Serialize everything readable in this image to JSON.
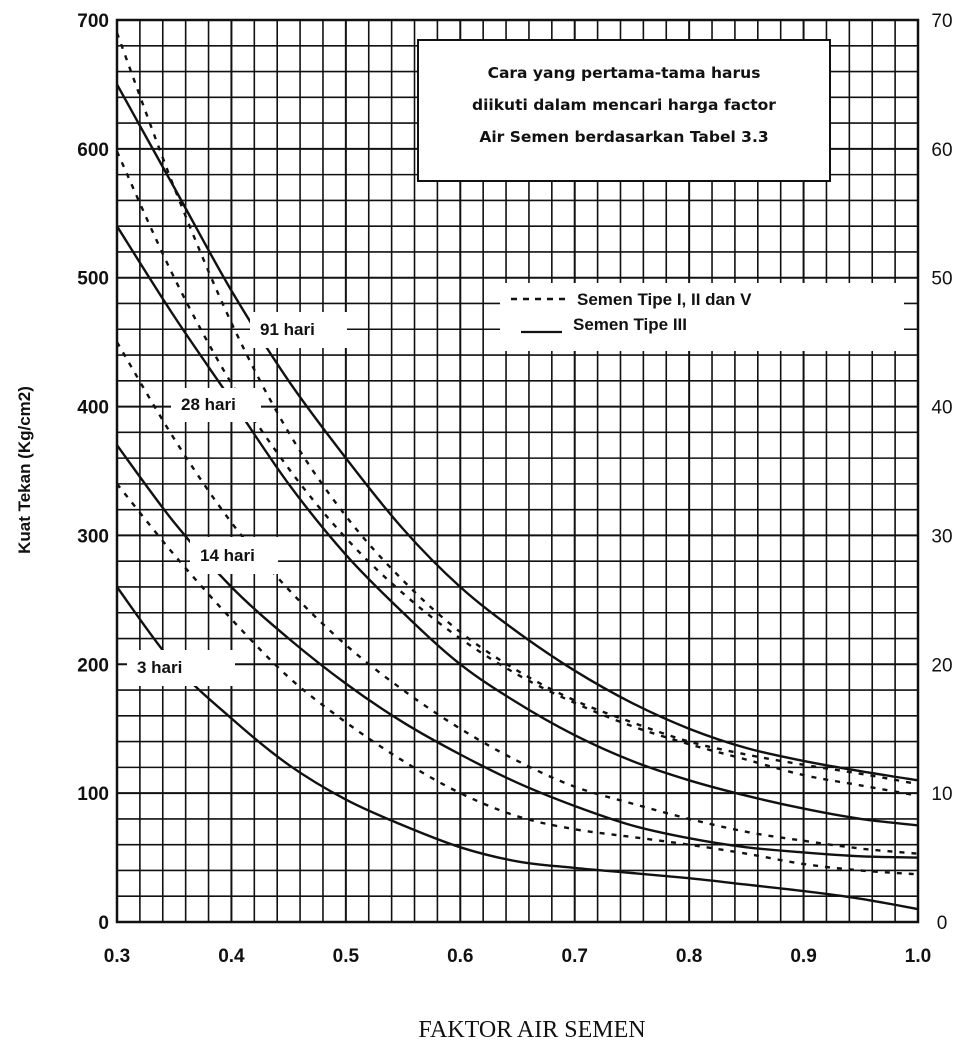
{
  "chart_data": {
    "type": "line",
    "xlabel": "FAKTOR AIR SEMEN",
    "ylabel": "Kuat Tekan (Kg/cm2)",
    "xlim": [
      0.3,
      1.0
    ],
    "ylim": [
      0,
      700
    ],
    "y2lim": [
      0,
      70
    ],
    "grid": true,
    "x_ticks": [
      "0.3",
      "0.4",
      "0.5",
      "0.6",
      "0.7",
      "0.8",
      "0.9",
      "1.0"
    ],
    "y_ticks": [
      "0",
      "100",
      "200",
      "300",
      "400",
      "500",
      "600",
      "700"
    ],
    "y2_ticks": [
      "0",
      "10",
      "20",
      "30",
      "40",
      "50",
      "60",
      "70"
    ],
    "note": {
      "lines": [
        "Cara yang pertama-tama harus",
        "diikuti dalam mencari harga factor",
        "Air Semen berdasarkan Tabel 3.3"
      ]
    },
    "legend": {
      "position": "upper-right",
      "entries": [
        {
          "label": "Semen Tipe I, II dan V",
          "style": "dashed"
        },
        {
          "label": "Semen Tipe III",
          "style": "solid"
        }
      ]
    },
    "curve_labels": [
      "91 hari",
      "28 hari",
      "14 hari",
      "3 hari"
    ],
    "series": [
      {
        "age": "91 hari",
        "cement": "Semen Tipe I, II dan V",
        "style": "dashed",
        "x": [
          0.3,
          0.35,
          0.4,
          0.45,
          0.5,
          0.55,
          0.6,
          0.65,
          0.7,
          0.75,
          0.8,
          0.85,
          0.9,
          0.95,
          1.0
        ],
        "y": [
          690,
          570,
          465,
          380,
          315,
          265,
          225,
          195,
          172,
          155,
          140,
          130,
          122,
          115,
          107
        ]
      },
      {
        "age": "91 hari",
        "cement": "Semen Tipe III",
        "style": "solid",
        "x": [
          0.3,
          0.35,
          0.4,
          0.45,
          0.5,
          0.55,
          0.6,
          0.65,
          0.7,
          0.75,
          0.8,
          0.85,
          0.9,
          0.95,
          1.0
        ],
        "y": [
          650,
          570,
          490,
          420,
          360,
          305,
          260,
          225,
          195,
          170,
          150,
          135,
          125,
          117,
          110
        ]
      },
      {
        "age": "28 hari",
        "cement": "Semen Tipe I, II dan V",
        "style": "dashed",
        "x": [
          0.3,
          0.35,
          0.4,
          0.45,
          0.5,
          0.55,
          0.6,
          0.65,
          0.7,
          0.75,
          0.8,
          0.85,
          0.9,
          0.95,
          1.0
        ],
        "y": [
          598,
          500,
          418,
          352,
          298,
          255,
          220,
          192,
          170,
          152,
          138,
          126,
          114,
          106,
          98
        ]
      },
      {
        "age": "28 hari",
        "cement": "Semen Tipe III",
        "style": "solid",
        "x": [
          0.3,
          0.35,
          0.4,
          0.45,
          0.5,
          0.55,
          0.6,
          0.65,
          0.7,
          0.75,
          0.8,
          0.85,
          0.9,
          0.95,
          1.0
        ],
        "y": [
          540,
          470,
          405,
          340,
          285,
          240,
          200,
          170,
          145,
          125,
          110,
          98,
          88,
          80,
          75
        ]
      },
      {
        "age": "14 hari",
        "cement": "Semen Tipe I, II dan V",
        "style": "dashed",
        "x": [
          0.3,
          0.35,
          0.4,
          0.45,
          0.5,
          0.55,
          0.6,
          0.65,
          0.7,
          0.75,
          0.8,
          0.85,
          0.9,
          0.95,
          1.0
        ],
        "y": [
          450,
          375,
          310,
          258,
          215,
          180,
          150,
          125,
          105,
          92,
          80,
          70,
          63,
          57,
          53
        ]
      },
      {
        "age": "14 hari",
        "cement": "Semen Tipe III",
        "style": "solid",
        "x": [
          0.3,
          0.35,
          0.4,
          0.45,
          0.5,
          0.55,
          0.6,
          0.65,
          0.7,
          0.75,
          0.8,
          0.85,
          0.9,
          0.95,
          1.0
        ],
        "y": [
          370,
          310,
          260,
          220,
          185,
          155,
          130,
          108,
          90,
          75,
          65,
          58,
          54,
          51,
          50
        ]
      },
      {
        "age": "3 hari",
        "cement": "Semen Tipe I, II dan V",
        "style": "dashed",
        "x": [
          0.3,
          0.35,
          0.4,
          0.45,
          0.5,
          0.55,
          0.6,
          0.65,
          0.7,
          0.75,
          0.8,
          0.85,
          0.9,
          0.95,
          1.0
        ],
        "y": [
          340,
          285,
          235,
          190,
          155,
          125,
          100,
          82,
          72,
          66,
          60,
          53,
          45,
          40,
          37
        ]
      },
      {
        "age": "3 hari",
        "cement": "Semen Tipe III",
        "style": "solid",
        "x": [
          0.3,
          0.35,
          0.4,
          0.45,
          0.5,
          0.55,
          0.6,
          0.65,
          0.7,
          0.75,
          0.8,
          0.85,
          0.9,
          0.95,
          1.0
        ],
        "y": [
          260,
          200,
          158,
          122,
          95,
          75,
          58,
          47,
          42,
          38,
          34,
          29,
          24,
          18,
          10
        ]
      }
    ]
  }
}
